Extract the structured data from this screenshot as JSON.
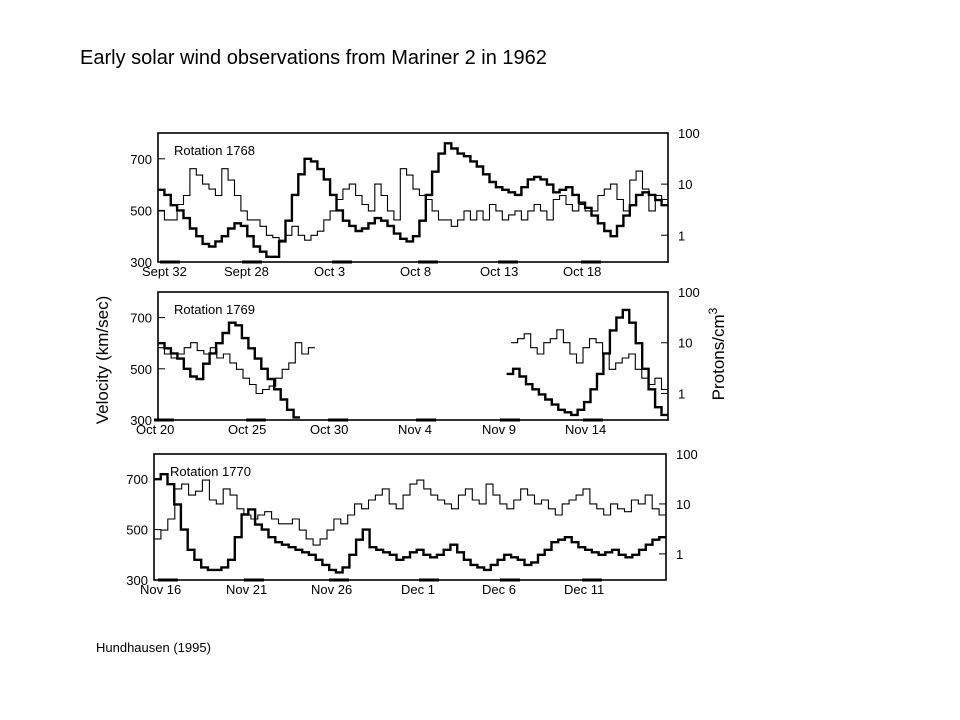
{
  "slide": {
    "title": "Early solar wind observations from Mariner 2 in 1962",
    "citation": "Hundhausen (1995)"
  },
  "chart_data": {
    "type": "line",
    "ylabel_left": "Velocity (km/sec)",
    "ylabel_right": "Protons/cm",
    "ylabel_right_superscript": "3",
    "velocity_ticks": [
      300,
      500,
      700
    ],
    "velocity_range": [
      300,
      800
    ],
    "density_ticks": [
      1,
      10,
      100
    ],
    "density_ticks_labels": [
      "1",
      "10",
      "100"
    ],
    "density_range": [
      0.3,
      100
    ],
    "density_scale": "log",
    "panels": [
      {
        "label": "Rotation 1768",
        "date_labels": [
          "Sept 32",
          "Sept 28",
          "Oct 3",
          "Oct 8",
          "Oct 13",
          "Oct 18"
        ],
        "series": [
          {
            "quantity": "velocity",
            "style": "heavy",
            "values": [
              580,
              560,
              520,
              500,
              470,
              430,
              400,
              370,
              360,
              380,
              400,
              430,
              450,
              440,
              400,
              360,
              340,
              320,
              320,
              380,
              460,
              560,
              640,
              700,
              690,
              660,
              620,
              560,
              500,
              460,
              440,
              420,
              430,
              450,
              470,
              460,
              440,
              410,
              390,
              380,
              400,
              460,
              560,
              650,
              720,
              760,
              740,
              720,
              710,
              690,
              670,
              640,
              610,
              590,
              580,
              570,
              560,
              590,
              620,
              630,
              620,
              600,
              570,
              580,
              590,
              560,
              530,
              510,
              480,
              450,
              420,
              400,
              440,
              480,
              520,
              560,
              570,
              560,
              540,
              520
            ]
          },
          {
            "quantity": "density",
            "style": "thin",
            "values": [
              3,
              2,
              2,
              4,
              6,
              20,
              15,
              10,
              8,
              6,
              20,
              12,
              6,
              3,
              2,
              2,
              1.5,
              1,
              0.9,
              0.8,
              1,
              1.5,
              1,
              0.8,
              1,
              1.2,
              2,
              3,
              5,
              8,
              10,
              6,
              4,
              3,
              10,
              6,
              3,
              2,
              20,
              15,
              8,
              6,
              5,
              3,
              2,
              2,
              1.5,
              2,
              3,
              2,
              3,
              2,
              4,
              3,
              2,
              2.5,
              3,
              2,
              3,
              4,
              3,
              2,
              5,
              6,
              4,
              3,
              4,
              3,
              3,
              6,
              8,
              10,
              5,
              3,
              12,
              18,
              8,
              3,
              6,
              5
            ]
          }
        ]
      },
      {
        "label": "Rotation 1769",
        "date_labels": [
          "Oct 20",
          "Oct 25",
          "Oct 30",
          "Nov 4",
          "Nov 9",
          "Nov 14"
        ],
        "series": [
          {
            "quantity": "velocity",
            "style": "heavy",
            "values": [
              600,
              580,
              560,
              540,
              500,
              470,
              460,
              520,
              560,
              600,
              640,
              680,
              670,
              620,
              580,
              540,
              500,
              460,
              420,
              380,
              340,
              310,
              null,
              null,
              null,
              null,
              null,
              null,
              null,
              null,
              null,
              null,
              null,
              null,
              null,
              null,
              null,
              null,
              null,
              null,
              null,
              null,
              null,
              null,
              null,
              null,
              null,
              null,
              null,
              null,
              null,
              null,
              null,
              null,
              480,
              500,
              470,
              440,
              420,
              400,
              380,
              360,
              340,
              330,
              320,
              340,
              370,
              420,
              480,
              560,
              650,
              700,
              730,
              680,
              600,
              500,
              420,
              350,
              320
            ]
          },
          {
            "quantity": "density",
            "style": "thin",
            "values": [
              8,
              6,
              5,
              6,
              8,
              10,
              7,
              6,
              8,
              5,
              6,
              4,
              3,
              2,
              1.5,
              1,
              1.2,
              1.4,
              2,
              3,
              4,
              10,
              6,
              8,
              null,
              null,
              null,
              null,
              null,
              null,
              null,
              null,
              null,
              null,
              null,
              null,
              null,
              null,
              null,
              null,
              null,
              null,
              null,
              null,
              null,
              null,
              null,
              null,
              null,
              null,
              null,
              null,
              null,
              null,
              10,
              12,
              15,
              8,
              6,
              10,
              12,
              18,
              10,
              6,
              4,
              8,
              12,
              10,
              6,
              3,
              4,
              5,
              6,
              3,
              2,
              1.5,
              2,
              1.2
            ]
          }
        ]
      },
      {
        "label": "Rotation 1770",
        "date_labels": [
          "Nov 16",
          "Nov 21",
          "Nov 26",
          "Dec 1",
          "Dec 6",
          "Dec 11"
        ],
        "series": [
          {
            "quantity": "velocity",
            "style": "heavy",
            "values": [
              700,
              720,
              680,
              600,
              500,
              420,
              380,
              350,
              340,
              340,
              350,
              380,
              470,
              560,
              580,
              520,
              500,
              470,
              450,
              440,
              430,
              420,
              410,
              400,
              380,
              360,
              340,
              330,
              350,
              400,
              460,
              500,
              430,
              420,
              410,
              400,
              380,
              390,
              410,
              420,
              400,
              390,
              400,
              420,
              440,
              410,
              380,
              360,
              350,
              340,
              360,
              380,
              400,
              390,
              380,
              360,
              370,
              400,
              420,
              450,
              460,
              470,
              450,
              430,
              420,
              410,
              400,
              410,
              420,
              400,
              390,
              400,
              420,
              440,
              460,
              470
            ]
          },
          {
            "quantity": "density",
            "style": "thin",
            "values": [
              2,
              3,
              5,
              20,
              25,
              15,
              18,
              30,
              12,
              10,
              20,
              15,
              8,
              6,
              5,
              6,
              7,
              5,
              4,
              4,
              5,
              3,
              2,
              1.5,
              2,
              3,
              5,
              4,
              6,
              10,
              8,
              12,
              15,
              20,
              10,
              8,
              15,
              25,
              30,
              20,
              15,
              12,
              10,
              8,
              15,
              20,
              12,
              10,
              25,
              15,
              10,
              8,
              12,
              20,
              15,
              10,
              12,
              8,
              6,
              10,
              12,
              15,
              20,
              10,
              8,
              6,
              10,
              8,
              7,
              12,
              10,
              15,
              8,
              6
            ]
          }
        ]
      }
    ]
  }
}
